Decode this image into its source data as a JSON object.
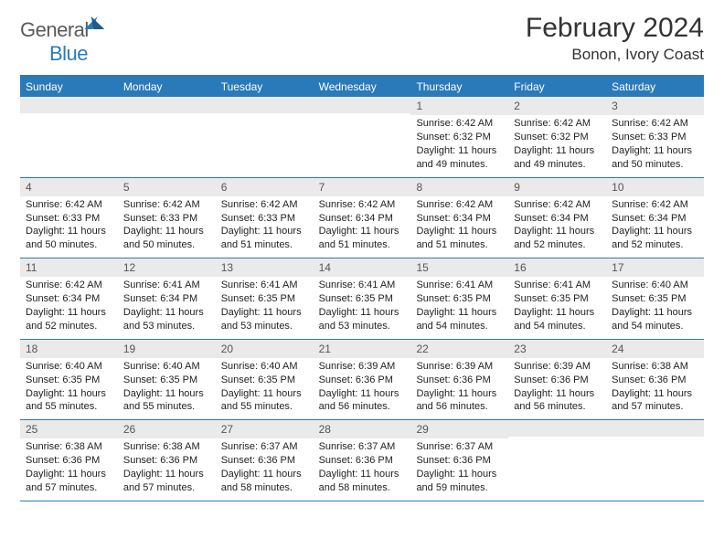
{
  "brand": {
    "part1": "General",
    "part2": "Blue"
  },
  "title": "February 2024",
  "location": "Bonon, Ivory Coast",
  "colors": {
    "primary": "#2a7ab9",
    "headerText": "#ffffff",
    "dayBg": "#eaeaea",
    "text": "#222222"
  },
  "calendar": {
    "type": "table",
    "days": [
      "Sunday",
      "Monday",
      "Tuesday",
      "Wednesday",
      "Thursday",
      "Friday",
      "Saturday"
    ],
    "weeks": [
      [
        {
          "n": "",
          "sr": "",
          "ss": "",
          "dl": ""
        },
        {
          "n": "",
          "sr": "",
          "ss": "",
          "dl": ""
        },
        {
          "n": "",
          "sr": "",
          "ss": "",
          "dl": ""
        },
        {
          "n": "",
          "sr": "",
          "ss": "",
          "dl": ""
        },
        {
          "n": "1",
          "sr": "Sunrise: 6:42 AM",
          "ss": "Sunset: 6:32 PM",
          "dl": "Daylight: 11 hours and 49 minutes."
        },
        {
          "n": "2",
          "sr": "Sunrise: 6:42 AM",
          "ss": "Sunset: 6:32 PM",
          "dl": "Daylight: 11 hours and 49 minutes."
        },
        {
          "n": "3",
          "sr": "Sunrise: 6:42 AM",
          "ss": "Sunset: 6:33 PM",
          "dl": "Daylight: 11 hours and 50 minutes."
        }
      ],
      [
        {
          "n": "4",
          "sr": "Sunrise: 6:42 AM",
          "ss": "Sunset: 6:33 PM",
          "dl": "Daylight: 11 hours and 50 minutes."
        },
        {
          "n": "5",
          "sr": "Sunrise: 6:42 AM",
          "ss": "Sunset: 6:33 PM",
          "dl": "Daylight: 11 hours and 50 minutes."
        },
        {
          "n": "6",
          "sr": "Sunrise: 6:42 AM",
          "ss": "Sunset: 6:33 PM",
          "dl": "Daylight: 11 hours and 51 minutes."
        },
        {
          "n": "7",
          "sr": "Sunrise: 6:42 AM",
          "ss": "Sunset: 6:34 PM",
          "dl": "Daylight: 11 hours and 51 minutes."
        },
        {
          "n": "8",
          "sr": "Sunrise: 6:42 AM",
          "ss": "Sunset: 6:34 PM",
          "dl": "Daylight: 11 hours and 51 minutes."
        },
        {
          "n": "9",
          "sr": "Sunrise: 6:42 AM",
          "ss": "Sunset: 6:34 PM",
          "dl": "Daylight: 11 hours and 52 minutes."
        },
        {
          "n": "10",
          "sr": "Sunrise: 6:42 AM",
          "ss": "Sunset: 6:34 PM",
          "dl": "Daylight: 11 hours and 52 minutes."
        }
      ],
      [
        {
          "n": "11",
          "sr": "Sunrise: 6:42 AM",
          "ss": "Sunset: 6:34 PM",
          "dl": "Daylight: 11 hours and 52 minutes."
        },
        {
          "n": "12",
          "sr": "Sunrise: 6:41 AM",
          "ss": "Sunset: 6:34 PM",
          "dl": "Daylight: 11 hours and 53 minutes."
        },
        {
          "n": "13",
          "sr": "Sunrise: 6:41 AM",
          "ss": "Sunset: 6:35 PM",
          "dl": "Daylight: 11 hours and 53 minutes."
        },
        {
          "n": "14",
          "sr": "Sunrise: 6:41 AM",
          "ss": "Sunset: 6:35 PM",
          "dl": "Daylight: 11 hours and 53 minutes."
        },
        {
          "n": "15",
          "sr": "Sunrise: 6:41 AM",
          "ss": "Sunset: 6:35 PM",
          "dl": "Daylight: 11 hours and 54 minutes."
        },
        {
          "n": "16",
          "sr": "Sunrise: 6:41 AM",
          "ss": "Sunset: 6:35 PM",
          "dl": "Daylight: 11 hours and 54 minutes."
        },
        {
          "n": "17",
          "sr": "Sunrise: 6:40 AM",
          "ss": "Sunset: 6:35 PM",
          "dl": "Daylight: 11 hours and 54 minutes."
        }
      ],
      [
        {
          "n": "18",
          "sr": "Sunrise: 6:40 AM",
          "ss": "Sunset: 6:35 PM",
          "dl": "Daylight: 11 hours and 55 minutes."
        },
        {
          "n": "19",
          "sr": "Sunrise: 6:40 AM",
          "ss": "Sunset: 6:35 PM",
          "dl": "Daylight: 11 hours and 55 minutes."
        },
        {
          "n": "20",
          "sr": "Sunrise: 6:40 AM",
          "ss": "Sunset: 6:35 PM",
          "dl": "Daylight: 11 hours and 55 minutes."
        },
        {
          "n": "21",
          "sr": "Sunrise: 6:39 AM",
          "ss": "Sunset: 6:36 PM",
          "dl": "Daylight: 11 hours and 56 minutes."
        },
        {
          "n": "22",
          "sr": "Sunrise: 6:39 AM",
          "ss": "Sunset: 6:36 PM",
          "dl": "Daylight: 11 hours and 56 minutes."
        },
        {
          "n": "23",
          "sr": "Sunrise: 6:39 AM",
          "ss": "Sunset: 6:36 PM",
          "dl": "Daylight: 11 hours and 56 minutes."
        },
        {
          "n": "24",
          "sr": "Sunrise: 6:38 AM",
          "ss": "Sunset: 6:36 PM",
          "dl": "Daylight: 11 hours and 57 minutes."
        }
      ],
      [
        {
          "n": "25",
          "sr": "Sunrise: 6:38 AM",
          "ss": "Sunset: 6:36 PM",
          "dl": "Daylight: 11 hours and 57 minutes."
        },
        {
          "n": "26",
          "sr": "Sunrise: 6:38 AM",
          "ss": "Sunset: 6:36 PM",
          "dl": "Daylight: 11 hours and 57 minutes."
        },
        {
          "n": "27",
          "sr": "Sunrise: 6:37 AM",
          "ss": "Sunset: 6:36 PM",
          "dl": "Daylight: 11 hours and 58 minutes."
        },
        {
          "n": "28",
          "sr": "Sunrise: 6:37 AM",
          "ss": "Sunset: 6:36 PM",
          "dl": "Daylight: 11 hours and 58 minutes."
        },
        {
          "n": "29",
          "sr": "Sunrise: 6:37 AM",
          "ss": "Sunset: 6:36 PM",
          "dl": "Daylight: 11 hours and 59 minutes."
        },
        {
          "n": "",
          "sr": "",
          "ss": "",
          "dl": ""
        },
        {
          "n": "",
          "sr": "",
          "ss": "",
          "dl": ""
        }
      ]
    ]
  }
}
